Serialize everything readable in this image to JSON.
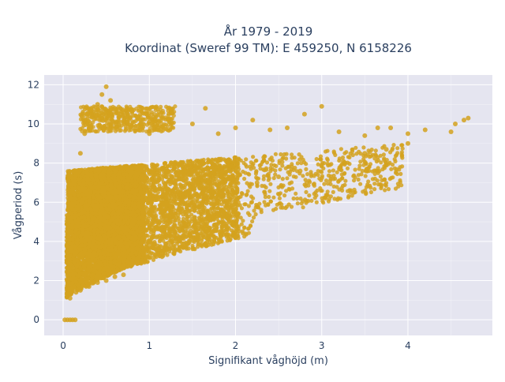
{
  "chart_data": {
    "type": "scatter",
    "title_line1": "År 1979 - 2019",
    "title_line2": "Koordinat (Sweref 99 TM): E 459250, N 6158226",
    "xlabel": "Signifikant våghöjd (m)",
    "ylabel": "Vågperiod (s)",
    "xlim": [
      -0.22,
      4.98
    ],
    "ylim": [
      -0.8,
      12.5
    ],
    "x_ticks": [
      0,
      1,
      2,
      3,
      4
    ],
    "x_tick_labels": [
      "0",
      "1",
      "2",
      "3",
      "4"
    ],
    "y_ticks": [
      0,
      2,
      4,
      6,
      8,
      10,
      12
    ],
    "y_tick_labels": [
      "0",
      "2",
      "4",
      "6",
      "8",
      "10",
      "12"
    ],
    "grid": true,
    "colors": {
      "background": "#e5e5f0",
      "points": "#d4a21e",
      "text": "#2a3f5f"
    },
    "series": [
      {
        "values": [
          [
            0.02,
            0.0
          ],
          [
            0.05,
            0.0
          ],
          [
            0.08,
            0.0
          ],
          [
            0.11,
            0.0
          ],
          [
            0.14,
            0.0
          ],
          [
            0.05,
            1.2
          ],
          [
            0.08,
            1.1
          ],
          [
            0.15,
            1.4
          ],
          [
            0.2,
            1.5
          ],
          [
            0.3,
            1.7
          ],
          [
            0.1,
            3.5
          ],
          [
            0.1,
            5.0
          ],
          [
            0.15,
            7.5
          ],
          [
            0.2,
            8.5
          ],
          [
            0.25,
            9.5
          ],
          [
            0.3,
            9.8
          ],
          [
            0.35,
            10.5
          ],
          [
            0.4,
            11.0
          ],
          [
            0.45,
            11.5
          ],
          [
            0.5,
            11.9
          ],
          [
            0.55,
            11.2
          ],
          [
            0.6,
            10.8
          ],
          [
            0.75,
            10.5
          ],
          [
            0.9,
            10.0
          ],
          [
            1.0,
            9.5
          ],
          [
            1.1,
            9.7
          ],
          [
            1.25,
            10.6
          ],
          [
            1.5,
            10.0
          ],
          [
            1.65,
            10.8
          ],
          [
            1.8,
            9.5
          ],
          [
            2.0,
            9.8
          ],
          [
            2.2,
            10.2
          ],
          [
            2.4,
            9.7
          ],
          [
            2.6,
            9.8
          ],
          [
            2.8,
            10.5
          ],
          [
            3.0,
            10.9
          ],
          [
            3.2,
            9.6
          ],
          [
            3.5,
            9.4
          ],
          [
            3.65,
            9.8
          ],
          [
            3.8,
            9.8
          ],
          [
            4.0,
            9.5
          ],
          [
            4.2,
            9.7
          ],
          [
            4.5,
            9.6
          ],
          [
            4.55,
            10.0
          ],
          [
            4.65,
            10.2
          ],
          [
            4.7,
            10.3
          ],
          [
            0.25,
            4.0
          ],
          [
            0.5,
            5.0
          ],
          [
            0.75,
            5.5
          ],
          [
            1.0,
            5.5
          ],
          [
            1.25,
            5.8
          ],
          [
            1.5,
            6.0
          ],
          [
            1.75,
            6.5
          ],
          [
            2.0,
            6.8
          ],
          [
            2.25,
            7.0
          ],
          [
            2.5,
            7.3
          ],
          [
            2.75,
            7.6
          ],
          [
            3.0,
            7.9
          ],
          [
            3.25,
            8.1
          ],
          [
            3.5,
            8.5
          ],
          [
            3.75,
            8.7
          ],
          [
            4.0,
            9.0
          ],
          [
            0.6,
            2.2
          ],
          [
            0.7,
            2.3
          ],
          [
            0.2,
            2.0
          ],
          [
            0.4,
            1.9
          ],
          [
            0.5,
            2.0
          ],
          [
            0.8,
            3.0
          ],
          [
            1.0,
            4.0
          ],
          [
            1.3,
            4.5
          ]
        ]
      }
    ]
  }
}
